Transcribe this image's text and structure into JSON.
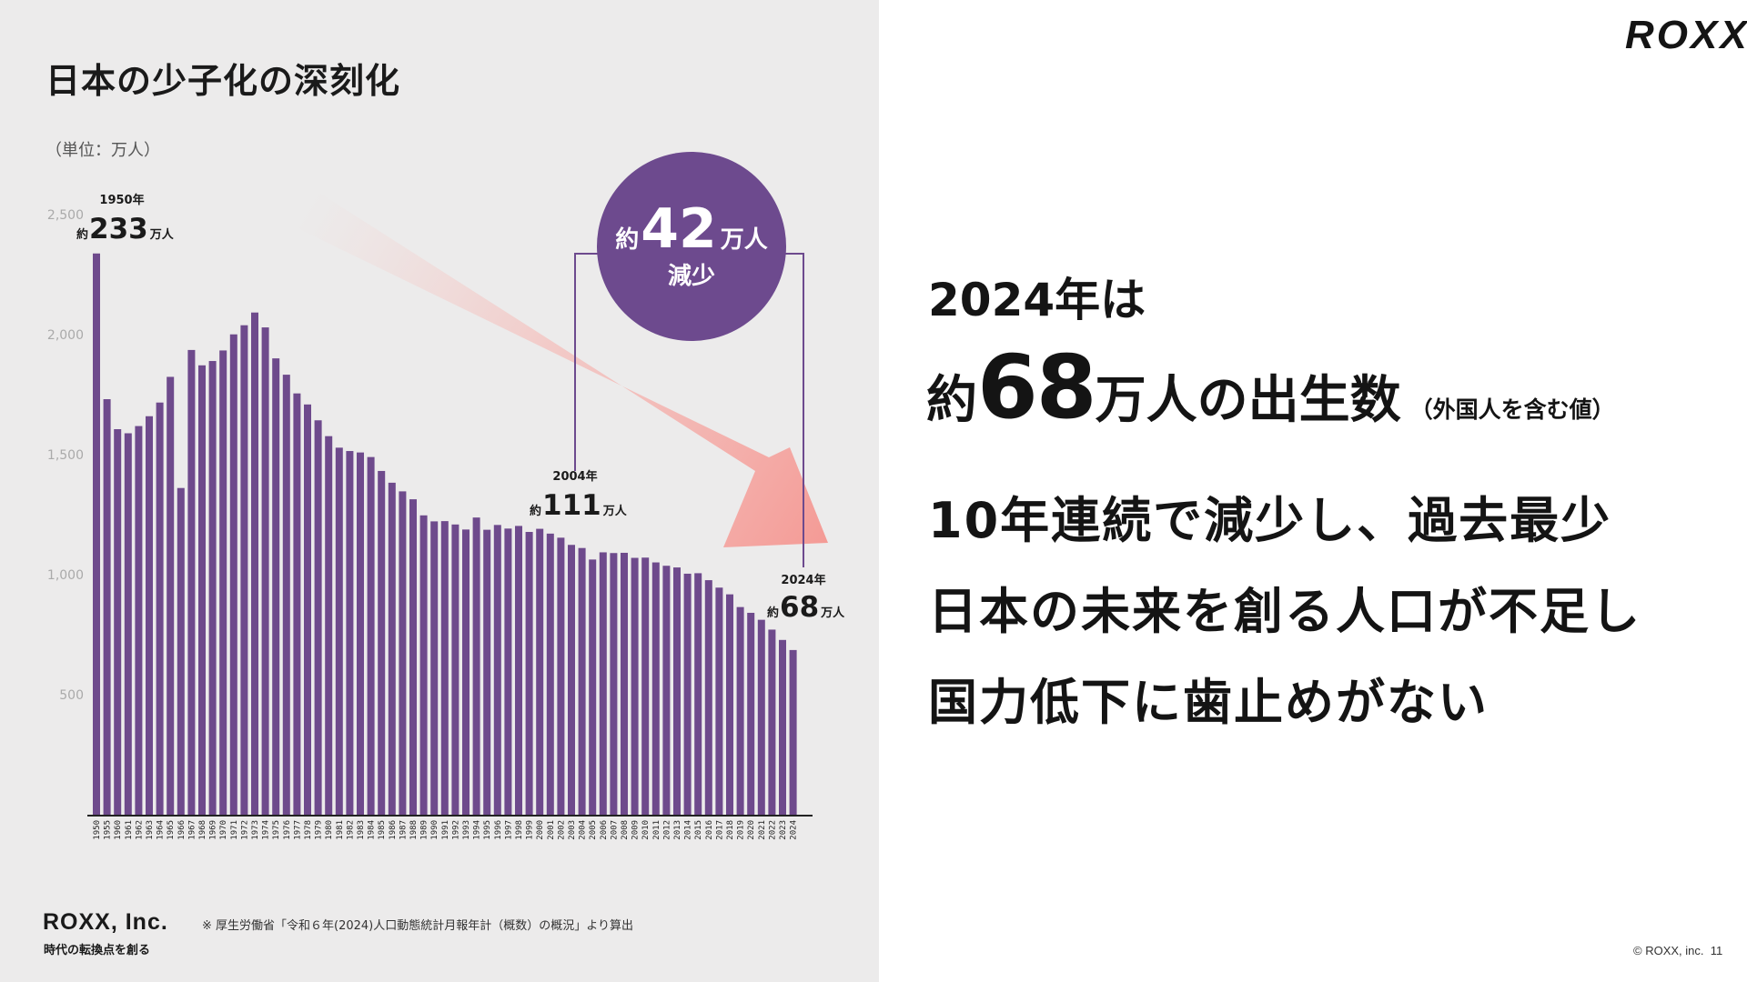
{
  "left": {
    "title": "日本の少子化の深刻化",
    "unit": "（単位：万人）",
    "callouts": [
      {
        "year": "1950年",
        "prefix": "約",
        "value": "233",
        "unit": "万人"
      },
      {
        "year": "2004年",
        "prefix": "約",
        "value": "111",
        "unit": "万人"
      },
      {
        "year": "2024年",
        "prefix": "約",
        "value": "68",
        "unit": "万人"
      }
    ],
    "bubble": {
      "prefix": "約",
      "value": "42",
      "unit": "万人",
      "sub": "減少"
    },
    "company_name": "ROXX, Inc.",
    "company_tagline": "時代の転換点を創る",
    "source": "※ 厚生労働省「令和６年(2024)人口動態統計月報年計（概数）の概況」より算出"
  },
  "right": {
    "logo": "ROXX",
    "headline_1": "2024年は",
    "headline_2_pre": "約",
    "headline_2_num": "68",
    "headline_2_post": "万人の出生数",
    "headline_2_note": "（外国人を含む値）",
    "body_line_1": "10年連続で減少し、過去最少",
    "body_line_2": "日本の未来を創る人口が不足し",
    "body_line_3": "国力低下に歯止めがない",
    "copyright": "© ROXX, inc.",
    "page_number": "11"
  },
  "colors": {
    "bar": "#6e4a8c",
    "bubble": "#6d4a8e",
    "arrow_end": "#f49b96",
    "panel": "#ecebeb"
  },
  "chart_data": {
    "type": "bar",
    "title": "日本の少子化の深刻化",
    "ylabel": "（単位：万人）",
    "xlabel": "",
    "ylim": [
      0,
      2500
    ],
    "yticks": [
      500,
      1000,
      1500,
      2000,
      2500
    ],
    "categories": [
      "1950",
      "1955",
      "1960",
      "1961",
      "1962",
      "1963",
      "1964",
      "1965",
      "1966",
      "1967",
      "1968",
      "1969",
      "1970",
      "1971",
      "1972",
      "1973",
      "1974",
      "1975",
      "1976",
      "1977",
      "1978",
      "1979",
      "1980",
      "1981",
      "1982",
      "1983",
      "1984",
      "1985",
      "1986",
      "1987",
      "1988",
      "1989",
      "1990",
      "1991",
      "1992",
      "1993",
      "1994",
      "1995",
      "1996",
      "1997",
      "1998",
      "1999",
      "2000",
      "2001",
      "2002",
      "2003",
      "2004",
      "2005",
      "2006",
      "2007",
      "2008",
      "2009",
      "2010",
      "2011",
      "2012",
      "2013",
      "2014",
      "2015",
      "2016",
      "2017",
      "2018",
      "2019",
      "2020",
      "2021",
      "2022",
      "2023",
      "2024"
    ],
    "values": [
      2338,
      1731,
      1606,
      1589,
      1619,
      1660,
      1717,
      1824,
      1361,
      1936,
      1872,
      1890,
      1934,
      2001,
      2039,
      2092,
      2030,
      1901,
      1833,
      1755,
      1709,
      1643,
      1577,
      1529,
      1515,
      1509,
      1490,
      1432,
      1383,
      1347,
      1314,
      1247,
      1222,
      1223,
      1209,
      1188,
      1238,
      1187,
      1207,
      1192,
      1203,
      1178,
      1191,
      1171,
      1154,
      1124,
      1111,
      1063,
      1093,
      1090,
      1091,
      1070,
      1071,
      1051,
      1037,
      1030,
      1004,
      1006,
      977,
      946,
      918,
      865,
      841,
      812,
      771,
      728,
      686
    ],
    "annotations": [
      {
        "year": "1950",
        "text": "約233万人"
      },
      {
        "year": "2004",
        "text": "約111万人"
      },
      {
        "year": "2024",
        "text": "約68万人"
      },
      {
        "text": "約42万人 減少"
      }
    ]
  }
}
